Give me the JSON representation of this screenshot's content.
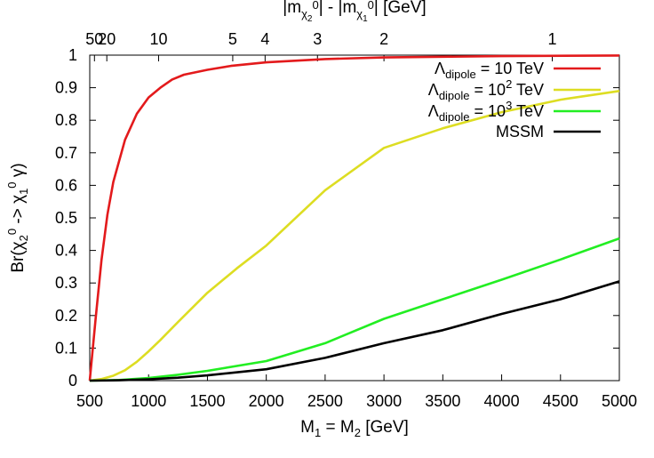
{
  "chart_data": {
    "type": "line",
    "xlabel": "M₁ = M₂ [GeV]",
    "ylabel": "Br(χ₂⁰ -> χ₁⁰ γ)",
    "top_xlabel": "|m_χ₂⁰| - |m_χ₁⁰| [GeV]",
    "xlim": [
      500,
      5000
    ],
    "ylim": [
      0,
      1
    ],
    "xticks": [
      500,
      1000,
      1500,
      2000,
      2500,
      3000,
      3500,
      4000,
      4500,
      5000
    ],
    "yticks": [
      0,
      0.1,
      0.2,
      0.3,
      0.4,
      0.5,
      0.6,
      0.7,
      0.8,
      0.9,
      1
    ],
    "top_ticks": [
      {
        "label": "50",
        "x": 540
      },
      {
        "label": "20",
        "x": 645
      },
      {
        "label": "10",
        "x": 1085
      },
      {
        "label": "5",
        "x": 1715
      },
      {
        "label": "4",
        "x": 1990
      },
      {
        "label": "3",
        "x": 2435
      },
      {
        "label": "2",
        "x": 3000
      },
      {
        "label": "1",
        "x": 4430
      }
    ],
    "grid": false,
    "legend": "top-right",
    "series": [
      {
        "name": "Λ_dipole = 10 TeV",
        "color": "#e31a1c",
        "x": [
          500,
          550,
          600,
          650,
          700,
          800,
          900,
          1000,
          1100,
          1200,
          1300,
          1500,
          1700,
          2000,
          2500,
          3000,
          4000,
          5000
        ],
        "y": [
          0.0,
          0.19,
          0.37,
          0.51,
          0.61,
          0.74,
          0.82,
          0.87,
          0.9,
          0.925,
          0.94,
          0.955,
          0.967,
          0.978,
          0.988,
          0.993,
          0.997,
          0.999
        ]
      },
      {
        "name": "Λ_dipole = 10² TeV",
        "color": "#dddd22",
        "x": [
          500,
          600,
          700,
          800,
          900,
          1000,
          1100,
          1250,
          1500,
          1750,
          2000,
          2500,
          3000,
          3500,
          4000,
          4500,
          5000
        ],
        "y": [
          0.0,
          0.005,
          0.015,
          0.032,
          0.058,
          0.09,
          0.125,
          0.18,
          0.27,
          0.345,
          0.415,
          0.585,
          0.715,
          0.775,
          0.825,
          0.863,
          0.89
        ]
      },
      {
        "name": "Λ_dipole = 10³ TeV",
        "color": "#22ee22",
        "x": [
          500,
          750,
          1000,
          1250,
          1500,
          2000,
          2500,
          3000,
          3500,
          4000,
          4500,
          5000
        ],
        "y": [
          0.0,
          0.002,
          0.008,
          0.018,
          0.03,
          0.06,
          0.115,
          0.19,
          0.25,
          0.31,
          0.372,
          0.437
        ]
      },
      {
        "name": "MSSM",
        "color": "#000000",
        "x": [
          500,
          750,
          1000,
          1250,
          1500,
          2000,
          2500,
          3000,
          3500,
          4000,
          4500,
          5000
        ],
        "y": [
          0.0,
          0.001,
          0.004,
          0.009,
          0.016,
          0.035,
          0.07,
          0.115,
          0.155,
          0.205,
          0.25,
          0.305
        ]
      }
    ]
  }
}
